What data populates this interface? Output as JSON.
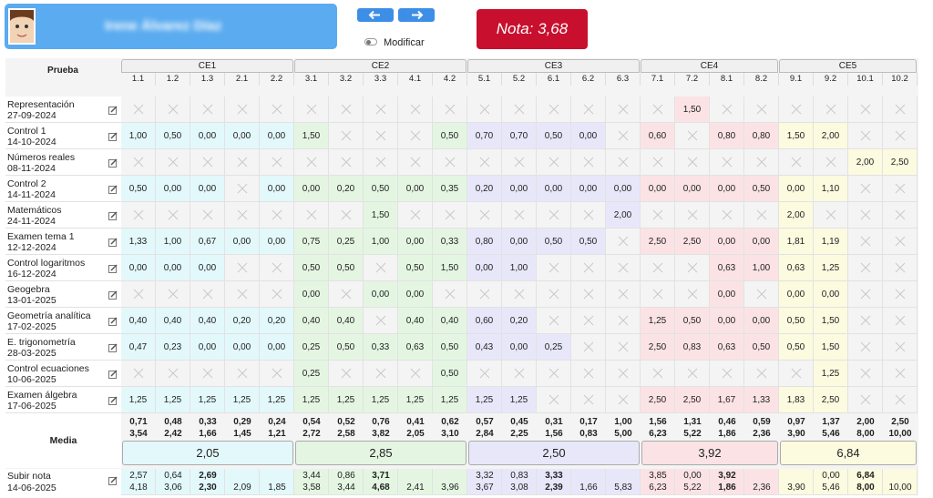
{
  "header": {
    "student_name": "Irene Álvarez Díaz",
    "toggle_label": "Modificar",
    "grade": "Nota: 3,68"
  },
  "table": {
    "first_column": "Prueba",
    "groups": [
      {
        "name": "CE1",
        "color": "#e3f8fa",
        "columns": [
          "1.1",
          "1.2",
          "1.3",
          "2.1",
          "2.2"
        ]
      },
      {
        "name": "CE2",
        "color": "#e4f6e2",
        "columns": [
          "3.1",
          "3.2",
          "3.3",
          "4.1",
          "4.2"
        ]
      },
      {
        "name": "CE3",
        "color": "#e8e7fa",
        "columns": [
          "5.1",
          "5.2",
          "6.1",
          "6.2",
          "6.3"
        ]
      },
      {
        "name": "CE4",
        "color": "#fbe3e5",
        "columns": [
          "7.1",
          "7.2",
          "8.1",
          "8.2"
        ]
      },
      {
        "name": "CE5",
        "color": "#fcfadf",
        "columns": [
          "9.1",
          "9.2",
          "10.1",
          "10.2"
        ]
      }
    ],
    "rows": [
      {
        "name": "Representación",
        "date": "27-09-2024",
        "cells": [
          null,
          null,
          null,
          null,
          null,
          null,
          null,
          null,
          null,
          null,
          null,
          null,
          null,
          null,
          null,
          null,
          "1,50",
          null,
          null,
          null,
          null,
          null,
          null
        ]
      },
      {
        "name": "Control 1",
        "date": "14-10-2024",
        "cells": [
          "1,00",
          "0,50",
          "0,00",
          "0,00",
          "0,00",
          "1,50",
          null,
          null,
          null,
          "0,50",
          "0,70",
          "0,70",
          "0,50",
          "0,00",
          null,
          "0,60",
          null,
          "0,80",
          "0,80",
          "1,50",
          "2,00",
          null,
          null
        ]
      },
      {
        "name": "Números reales",
        "date": "08-11-2024",
        "cells": [
          null,
          null,
          null,
          null,
          null,
          null,
          null,
          null,
          null,
          null,
          null,
          null,
          null,
          null,
          null,
          null,
          null,
          null,
          null,
          null,
          null,
          "2,00",
          "2,50"
        ]
      },
      {
        "name": "Control 2",
        "date": "14-11-2024",
        "cells": [
          "0,50",
          "0,00",
          "0,00",
          null,
          "0,00",
          "0,00",
          "0,20",
          "0,50",
          "0,00",
          "0,35",
          "0,20",
          "0,00",
          "0,00",
          "0,00",
          "0,00",
          "0,00",
          "0,00",
          "0,00",
          "0,50",
          "0,00",
          "1,10",
          null,
          null
        ]
      },
      {
        "name": "Matemáticos",
        "date": "24-11-2024",
        "cells": [
          null,
          null,
          null,
          null,
          null,
          null,
          null,
          "1,50",
          null,
          null,
          null,
          null,
          null,
          null,
          "2,00",
          null,
          null,
          null,
          null,
          "2,00",
          null,
          null,
          null
        ]
      },
      {
        "name": "Examen tema 1",
        "date": "12-12-2024",
        "cells": [
          "1,33",
          "1,00",
          "0,67",
          "0,00",
          "0,00",
          "0,75",
          "0,25",
          "1,00",
          "0,00",
          "0,33",
          "0,80",
          "0,00",
          "0,50",
          "0,50",
          null,
          "2,50",
          "2,50",
          "0,00",
          "0,00",
          "1,81",
          "1,19",
          null,
          null
        ]
      },
      {
        "name": "Control logaritmos",
        "date": "16-12-2024",
        "cells": [
          "0,00",
          "0,00",
          "0,00",
          null,
          null,
          "0,50",
          "0,50",
          null,
          "0,50",
          "1,50",
          "0,00",
          "1,00",
          null,
          null,
          null,
          null,
          null,
          "0,63",
          "1,00",
          "0,63",
          "1,25",
          null,
          null
        ]
      },
      {
        "name": "Geogebra",
        "date": "13-01-2025",
        "cells": [
          null,
          null,
          null,
          null,
          null,
          "0,00",
          null,
          "0,00",
          "0,00",
          null,
          null,
          null,
          null,
          null,
          null,
          null,
          null,
          "0,00",
          null,
          "0,00",
          "0,00",
          null,
          null
        ]
      },
      {
        "name": "Geometría analítica",
        "date": "17-02-2025",
        "cells": [
          "0,40",
          "0,40",
          "0,40",
          "0,20",
          "0,20",
          "0,40",
          "0,40",
          null,
          "0,40",
          "0,40",
          "0,60",
          "0,20",
          null,
          null,
          null,
          "1,25",
          "0,50",
          "0,00",
          "0,00",
          "0,50",
          "1,50",
          null,
          null
        ]
      },
      {
        "name": "E. trigonometría",
        "date": "28-03-2025",
        "cells": [
          "0,47",
          "0,23",
          "0,00",
          "0,00",
          "0,00",
          "0,25",
          "0,50",
          "0,33",
          "0,63",
          "0,50",
          "0,43",
          "0,00",
          "0,25",
          null,
          null,
          "2,50",
          "0,83",
          "0,63",
          "0,50",
          "0,50",
          "1,50",
          null,
          null
        ]
      },
      {
        "name": "Control ecuaciones",
        "date": "10-06-2025",
        "cells": [
          null,
          null,
          null,
          null,
          null,
          "0,25",
          null,
          null,
          null,
          "0,50",
          null,
          null,
          null,
          null,
          null,
          null,
          null,
          null,
          null,
          null,
          "1,25",
          null,
          null
        ]
      },
      {
        "name": "Examen álgebra",
        "date": "17-06-2025",
        "cells": [
          "1,25",
          "1,25",
          "1,25",
          "1,25",
          "1,25",
          "1,25",
          "1,25",
          "1,25",
          "1,25",
          "1,25",
          "1,25",
          "1,25",
          null,
          null,
          null,
          "2,50",
          "2,50",
          "1,67",
          "1,33",
          "1,83",
          "2,50",
          null,
          null
        ]
      }
    ],
    "mean": {
      "label": "Media",
      "weighted": [
        "0,71",
        "0,48",
        "0,33",
        "0,29",
        "0,24",
        "0,54",
        "0,52",
        "0,76",
        "0,41",
        "0,62",
        "0,57",
        "0,45",
        "0,31",
        "0,17",
        "1,00",
        "1,56",
        "1,31",
        "0,46",
        "0,59",
        "0,97",
        "1,37",
        "2,00",
        "2,50"
      ],
      "scaled": [
        "3,54",
        "2,42",
        "1,66",
        "1,45",
        "1,21",
        "2,72",
        "2,58",
        "3,82",
        "2,05",
        "3,10",
        "2,84",
        "2,25",
        "1,56",
        "0,83",
        "5,00",
        "6,23",
        "5,22",
        "1,86",
        "2,36",
        "3,90",
        "5,46",
        "8,00",
        "10,00"
      ],
      "group_means": [
        "2,05",
        "2,85",
        "2,50",
        "3,92",
        "6,84"
      ]
    },
    "upgrade": {
      "name": "Subir nota",
      "date": "14-06-2025",
      "top": [
        "2,57",
        "0,64",
        "2,69",
        null,
        null,
        "3,44",
        "0,86",
        "3,71",
        null,
        null,
        "3,32",
        "0,83",
        "3,33",
        null,
        null,
        "3,85",
        "0,00",
        "3,92",
        null,
        null,
        "0,00",
        "6,84",
        null
      ],
      "bottom": [
        "4,18",
        "3,06",
        "2,30",
        "2,09",
        "1,85",
        "3,58",
        "3,44",
        "4,68",
        "2,41",
        "3,96",
        "3,67",
        "3,08",
        "2,39",
        "1,66",
        "5,83",
        "6,23",
        "5,22",
        "1,86",
        "2,36",
        "3,90",
        "5,46",
        "8,00",
        "10,00"
      ]
    }
  }
}
